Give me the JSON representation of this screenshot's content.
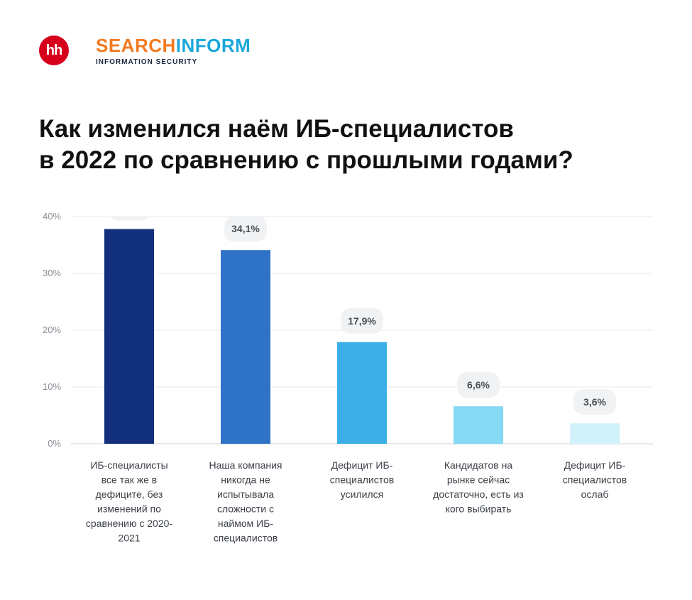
{
  "header": {
    "hh_logo_text": "hh",
    "brand_part1": "SEARCH",
    "brand_part2": "INFORM",
    "brand_subtitle": "INFORMATION SECURITY"
  },
  "title": {
    "line1": "Как изменился наём ИБ-специалистов",
    "line2_prefix": "в ",
    "line2_year": "2022",
    "line2_suffix": " по сравнению с прошлыми годами?"
  },
  "colors": {
    "brand_orange": "#f47a20",
    "brand_blue": "#19a7d9",
    "hh_red": "#d6001c"
  },
  "chart_data": {
    "type": "bar",
    "categories": [
      "ИБ-специалисты все так же в дефиците, без изменений по сравнению с 2020-2021",
      "Наша компания никогда не испытывала сложности с наймом ИБ-специалистов",
      "Дефицит ИБ-специалистов усилился",
      "Кандидатов на рынке сейчас достаточно, есть из кого выбирать",
      "Дефицит ИБ-специалистов ослаб"
    ],
    "category_lines": [
      [
        "ИБ-специалисты",
        "все так же в",
        "дефиците, без",
        "изменений по",
        "сравнению с 2020-",
        "2021"
      ],
      [
        "Наша компания",
        "никогда не",
        "испытывала",
        "сложности с",
        "наймом ИБ-",
        "специалистов"
      ],
      [
        "Дефицит ИБ-",
        "специалистов",
        "усилился"
      ],
      [
        "Кандидатов на",
        "рынке сейчас",
        "достаточно, есть из",
        "кого выбирать"
      ],
      [
        "Дефицит ИБ-",
        "специалистов",
        "ослаб"
      ]
    ],
    "values": [
      37.8,
      34.1,
      17.9,
      6.6,
      3.6
    ],
    "value_labels": [
      "",
      "34,1%",
      "17,9%",
      "6,6%",
      "3,6%"
    ],
    "bar_colors": [
      "#12307e",
      "#2e73c6",
      "#3cb0e6",
      "#86d9f3",
      "#d2f2fb"
    ],
    "yticks": [
      0,
      10,
      20,
      30,
      40
    ],
    "ytick_labels": [
      "0%",
      "10%",
      "20%",
      "30%",
      "40%"
    ],
    "ylim": [
      0,
      40
    ],
    "grid": true
  }
}
